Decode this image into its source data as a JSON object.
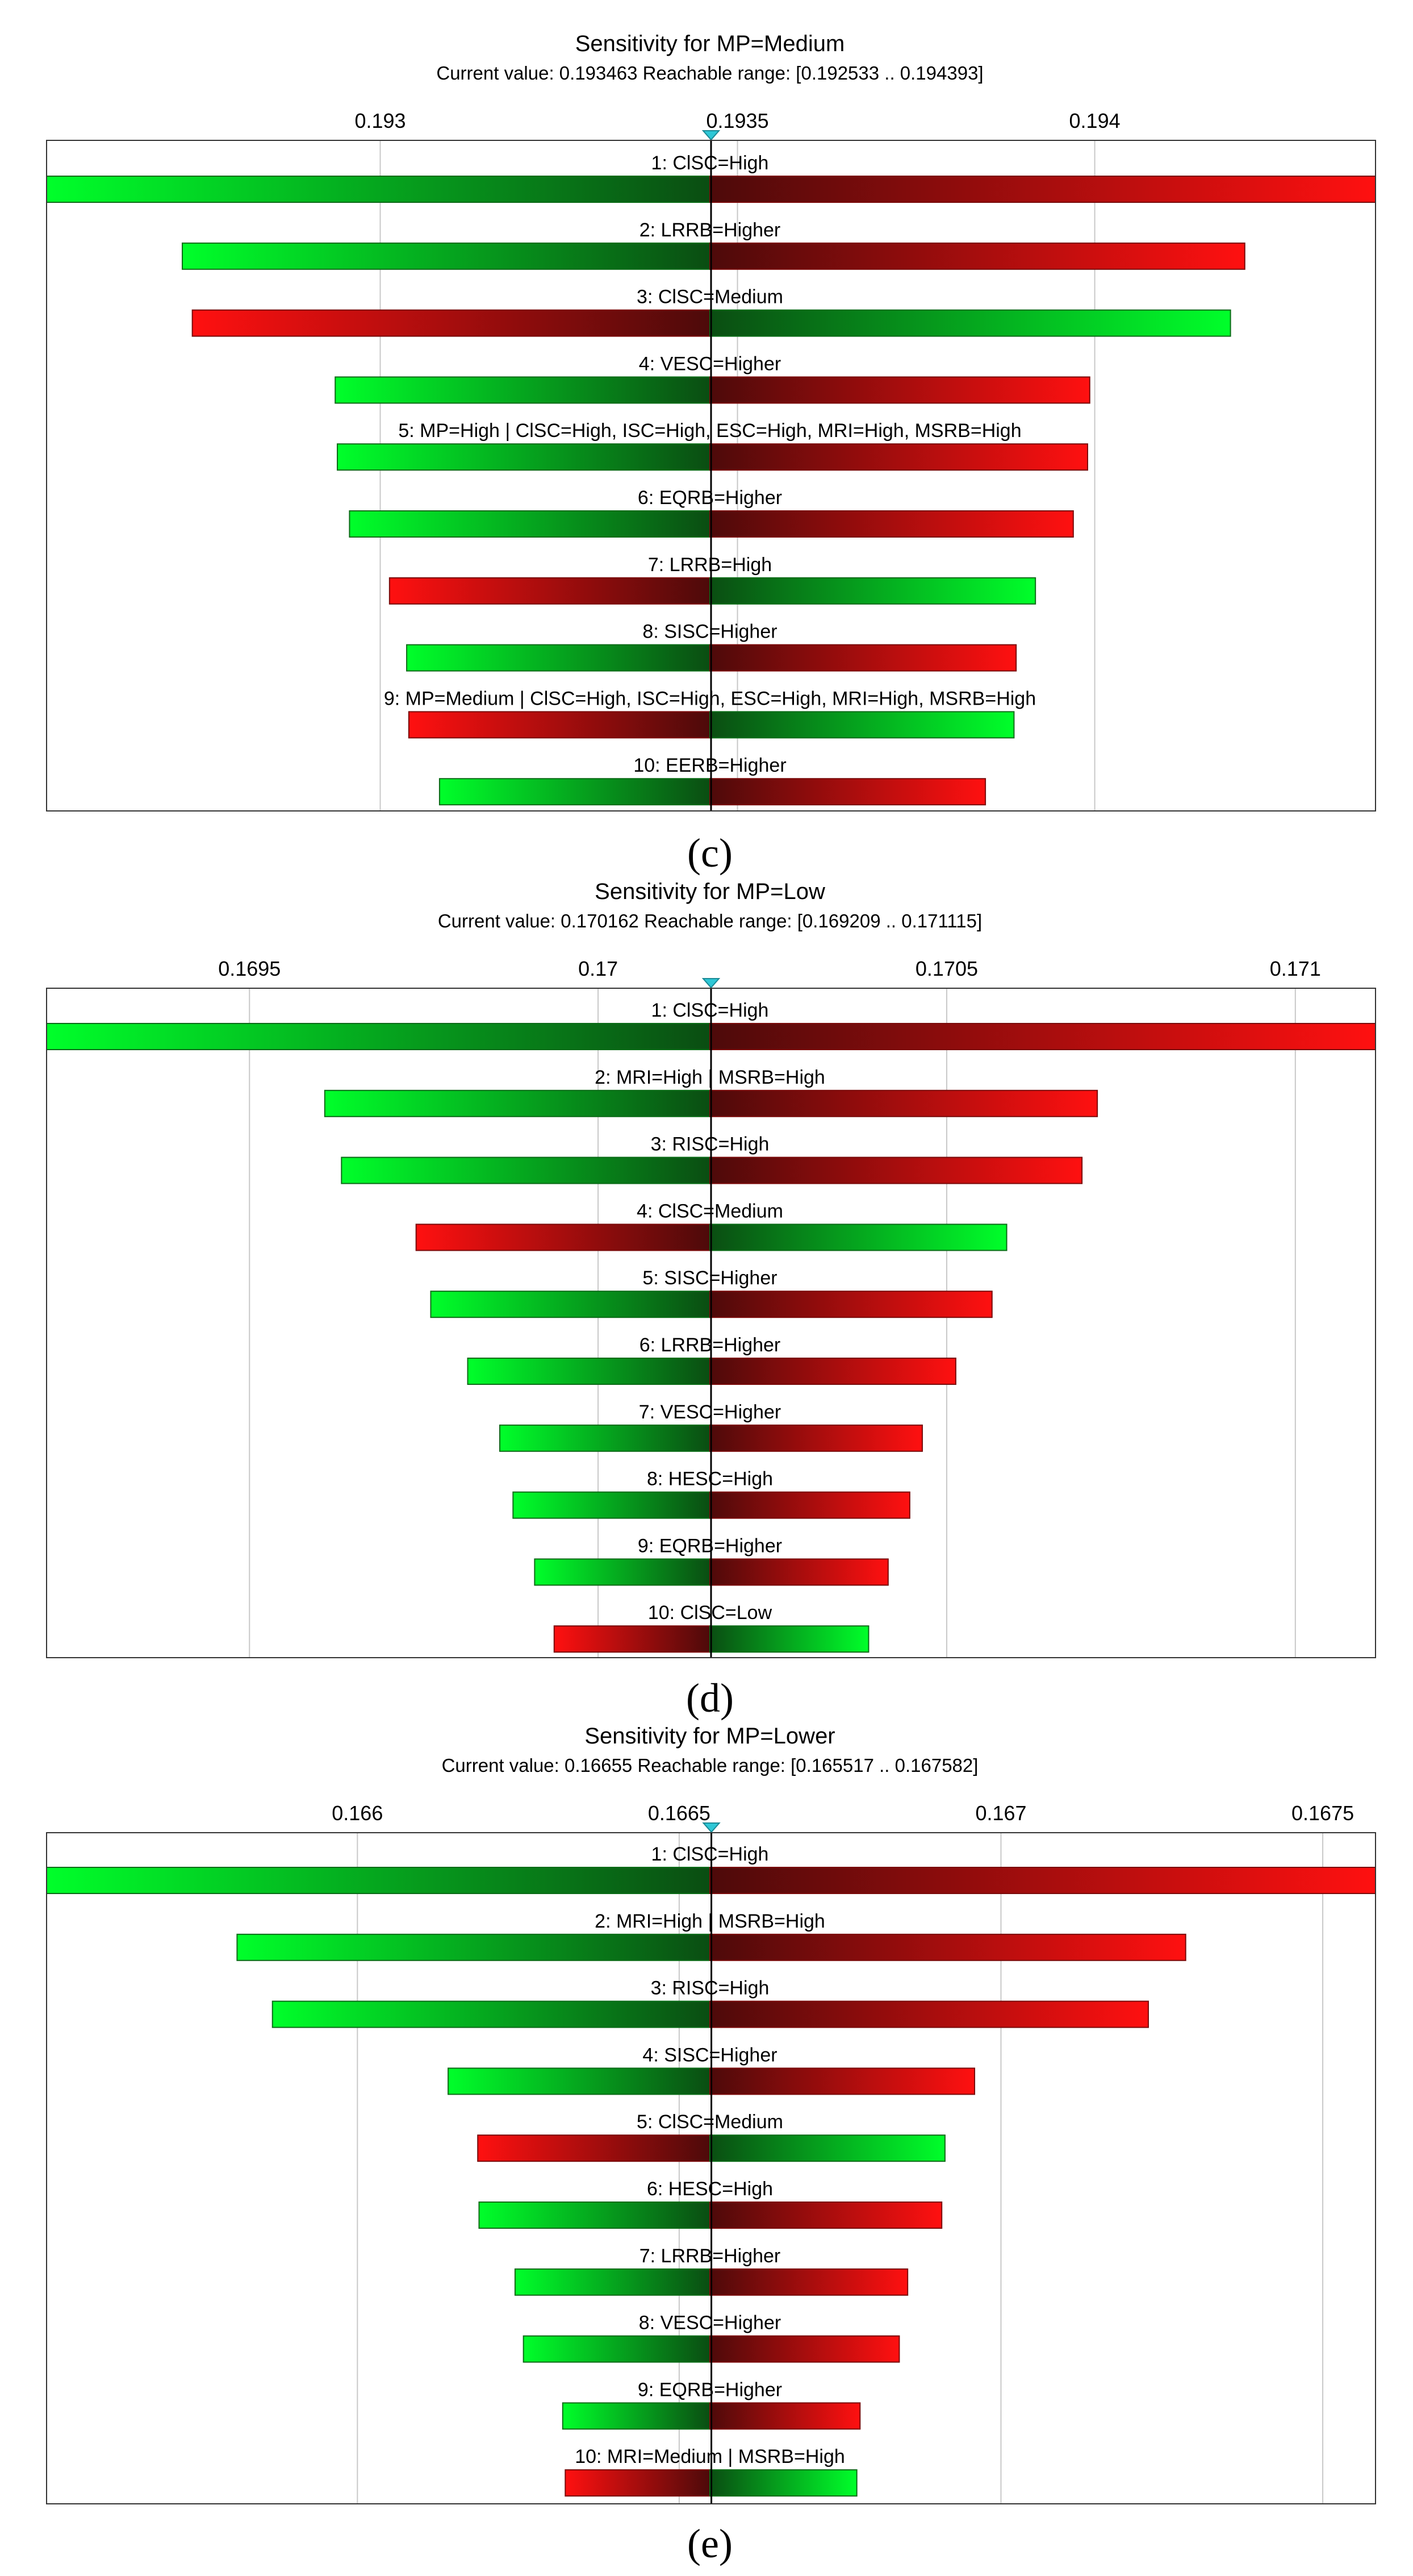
{
  "colors": {
    "low_strong": "#00ff2a",
    "low_dark": "#0a4d12",
    "high_dark": "#4d0a0a",
    "high_strong": "#ff1010",
    "grid": "#c8c8c8",
    "frame": "#333333",
    "marker": "#2ec7d6"
  },
  "chart_data": [
    {
      "type": "tornado",
      "title": "Sensitivity for MP=Medium",
      "subtitle": "Current value: 0.193463  Reachable range: [0.192533 .. 0.194393]",
      "current_value": 0.193463,
      "xlim": [
        0.192533,
        0.194393
      ],
      "ticks": [
        0.193,
        0.1935,
        0.194
      ],
      "tick_labels": [
        "0.193",
        "0.1935",
        "0.194"
      ],
      "bars": [
        {
          "label": "1: ClSC=High",
          "min": 0.192533,
          "max": 0.194393,
          "left": "green"
        },
        {
          "label": "2: LRRB=Higher",
          "min": 0.192723,
          "max": 0.19421,
          "left": "green"
        },
        {
          "label": "3: ClSC=Medium",
          "min": 0.192737,
          "max": 0.19419,
          "left": "red"
        },
        {
          "label": "4: VESC=Higher",
          "min": 0.192937,
          "max": 0.193993,
          "left": "green"
        },
        {
          "label": "5: MP=High | ClSC=High, ISC=High, ESC=High, MRI=High, MSRB=High",
          "min": 0.19294,
          "max": 0.19399,
          "left": "green"
        },
        {
          "label": "6: EQRB=Higher",
          "min": 0.192957,
          "max": 0.19397,
          "left": "green"
        },
        {
          "label": "7: LRRB=High",
          "min": 0.193013,
          "max": 0.193917,
          "left": "red"
        },
        {
          "label": "8: SISC=Higher",
          "min": 0.193037,
          "max": 0.19389,
          "left": "green"
        },
        {
          "label": "9: MP=Medium | ClSC=High, ISC=High, ESC=High, MRI=High, MSRB=High",
          "min": 0.19304,
          "max": 0.193887,
          "left": "red"
        },
        {
          "label": "10: EERB=Higher",
          "min": 0.193083,
          "max": 0.193847,
          "left": "green"
        }
      ],
      "caption": "(c)"
    },
    {
      "type": "tornado",
      "title": "Sensitivity for MP=Low",
      "subtitle": "Current value: 0.170162  Reachable range: [0.169209 .. 0.171115]",
      "current_value": 0.170162,
      "xlim": [
        0.169209,
        0.171115
      ],
      "ticks": [
        0.1695,
        0.17,
        0.1705,
        0.171
      ],
      "tick_labels": [
        "0.1695",
        "0.17",
        "0.1705",
        "0.171"
      ],
      "bars": [
        {
          "label": "1: ClSC=High",
          "min": 0.169209,
          "max": 0.171115,
          "left": "green"
        },
        {
          "label": "2: MRI=High | MSRB=High",
          "min": 0.169608,
          "max": 0.170716,
          "left": "green"
        },
        {
          "label": "3: RISC=High",
          "min": 0.169632,
          "max": 0.170694,
          "left": "green"
        },
        {
          "label": "4: ClSC=Medium",
          "min": 0.169739,
          "max": 0.170586,
          "left": "red"
        },
        {
          "label": "5: SISC=Higher",
          "min": 0.16976,
          "max": 0.170565,
          "left": "green"
        },
        {
          "label": "6: LRRB=Higher",
          "min": 0.169813,
          "max": 0.170513,
          "left": "green"
        },
        {
          "label": "7: VESC=Higher",
          "min": 0.169859,
          "max": 0.170465,
          "left": "green"
        },
        {
          "label": "8: HESC=High",
          "min": 0.169878,
          "max": 0.170447,
          "left": "green"
        },
        {
          "label": "9: EQRB=Higher",
          "min": 0.169909,
          "max": 0.170416,
          "left": "green"
        },
        {
          "label": "10: ClSC=Low",
          "min": 0.169937,
          "max": 0.170388,
          "left": "red"
        }
      ],
      "caption": "(d)"
    },
    {
      "type": "tornado",
      "title": "Sensitivity for MP=Lower",
      "subtitle": "Current value: 0.16655  Reachable range: [0.165517 .. 0.167582]",
      "current_value": 0.16655,
      "xlim": [
        0.165517,
        0.167582
      ],
      "ticks": [
        0.166,
        0.1665,
        0.167,
        0.1675
      ],
      "tick_labels": [
        "0.166",
        "0.1665",
        "0.167",
        "0.1675"
      ],
      "bars": [
        {
          "label": "1: ClSC=High",
          "min": 0.165517,
          "max": 0.167582,
          "left": "green"
        },
        {
          "label": "2: MRI=High | MSRB=High",
          "min": 0.165813,
          "max": 0.167287,
          "left": "green"
        },
        {
          "label": "3: RISC=High",
          "min": 0.165868,
          "max": 0.167229,
          "left": "green"
        },
        {
          "label": "4: SISC=Higher",
          "min": 0.166141,
          "max": 0.166959,
          "left": "green"
        },
        {
          "label": "5: ClSC=Medium",
          "min": 0.166187,
          "max": 0.166913,
          "left": "red"
        },
        {
          "label": "6: HESC=High",
          "min": 0.166189,
          "max": 0.166908,
          "left": "green"
        },
        {
          "label": "7: LRRB=Higher",
          "min": 0.166245,
          "max": 0.166855,
          "left": "green"
        },
        {
          "label": "8: VESC=Higher",
          "min": 0.166258,
          "max": 0.166842,
          "left": "green"
        },
        {
          "label": "9: EQRB=Higher",
          "min": 0.166319,
          "max": 0.166781,
          "left": "green"
        },
        {
          "label": "10: MRI=Medium | MSRB=High",
          "min": 0.166323,
          "max": 0.166776,
          "left": "red"
        }
      ],
      "caption": "(e)"
    }
  ]
}
